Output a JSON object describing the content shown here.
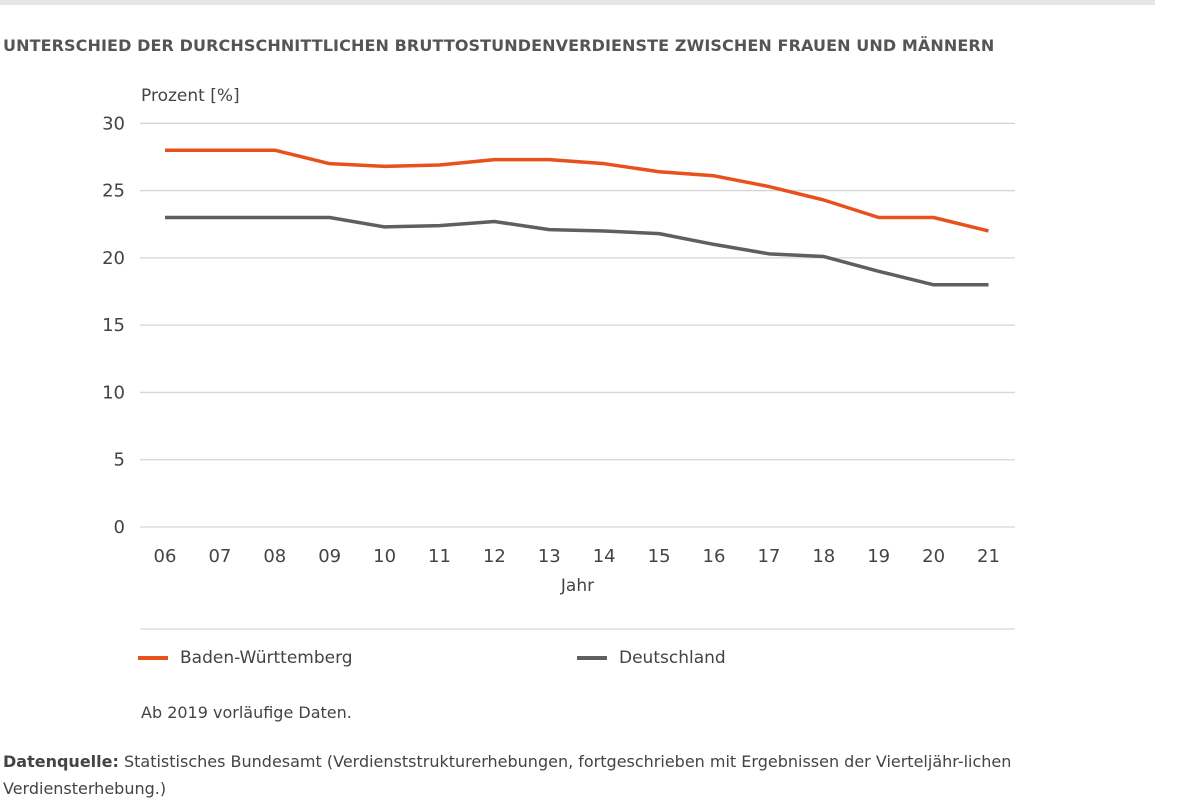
{
  "chart_data": {
    "type": "line",
    "title": "UNTERSCHIED DER DURCHSCHNITTLICHEN BRUTTOSTUNDENVERDIENSTE ZWISCHEN FRAUEN UND MÄNNERN",
    "ylabel": "Prozent [%]",
    "xlabel": "Jahr",
    "ylim": [
      0,
      30
    ],
    "yticks": [
      0,
      5,
      10,
      15,
      20,
      25,
      30
    ],
    "categories": [
      "06",
      "07",
      "08",
      "09",
      "10",
      "11",
      "12",
      "13",
      "14",
      "15",
      "16",
      "17",
      "18",
      "19",
      "20",
      "21"
    ],
    "grid": true,
    "legend": "bottom",
    "series": [
      {
        "name": "Baden-Württemberg",
        "color": "#e8501c",
        "values": [
          28,
          28,
          28,
          27,
          26.8,
          26.9,
          27.3,
          27.3,
          27,
          26.4,
          26.1,
          25.3,
          24.3,
          23,
          23,
          22
        ]
      },
      {
        "name": "Deutschland",
        "color": "#5f5f5f",
        "values": [
          23,
          23,
          23,
          23,
          22.3,
          22.4,
          22.7,
          22.1,
          22,
          21.8,
          21,
          20.3,
          20.1,
          19,
          18,
          18
        ]
      }
    ],
    "note": "Ab 2019 vorläufige Daten.",
    "source_label": "Datenquelle:",
    "source_text": " Statistisches Bundesamt (Verdienststrukturerhebungen, fortgeschrieben mit Ergebnissen der Vierteljähr-lichen Verdiensterhebung.)"
  }
}
